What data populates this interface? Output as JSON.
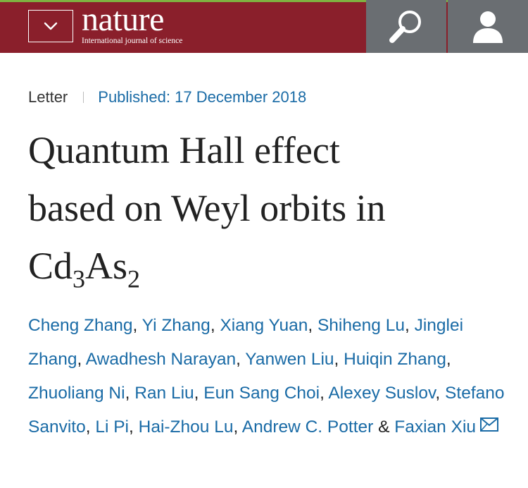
{
  "header": {
    "logo_text": "nature",
    "tagline": "International journal of science",
    "menu_icon": "chevron-down-icon",
    "search_icon": "search-icon",
    "user_icon": "user-icon",
    "colors": {
      "bar": "#8a1f2b",
      "squares": "#6a6e72",
      "accent_line": "#7fb241"
    }
  },
  "article": {
    "type": "Letter",
    "published": "Published: 17 December 2018",
    "title": {
      "line1": "Quantum Hall effect",
      "line2": "based on Weyl orbits in",
      "formula_base1": "Cd",
      "formula_sub1": "3",
      "formula_base2": "As",
      "formula_sub2": "2"
    },
    "authors": [
      "Cheng Zhang",
      "Yi Zhang",
      "Xiang Yuan",
      "Shiheng Lu",
      "Jinglei Zhang",
      "Awadhesh Narayan",
      "Yanwen Liu",
      "Huiqin Zhang",
      "Zhuoliang Ni",
      "Ran Liu",
      "Eun Sang Choi",
      "Alexey Suslov",
      "Stefano Sanvito",
      "Li Pi",
      "Hai-Zhou Lu",
      "Andrew C. Potter",
      "Faxian Xiu"
    ],
    "separator": ", ",
    "last_separator": " & ",
    "contact_icon": "mail-icon",
    "link_color": "#1a6ba6"
  }
}
